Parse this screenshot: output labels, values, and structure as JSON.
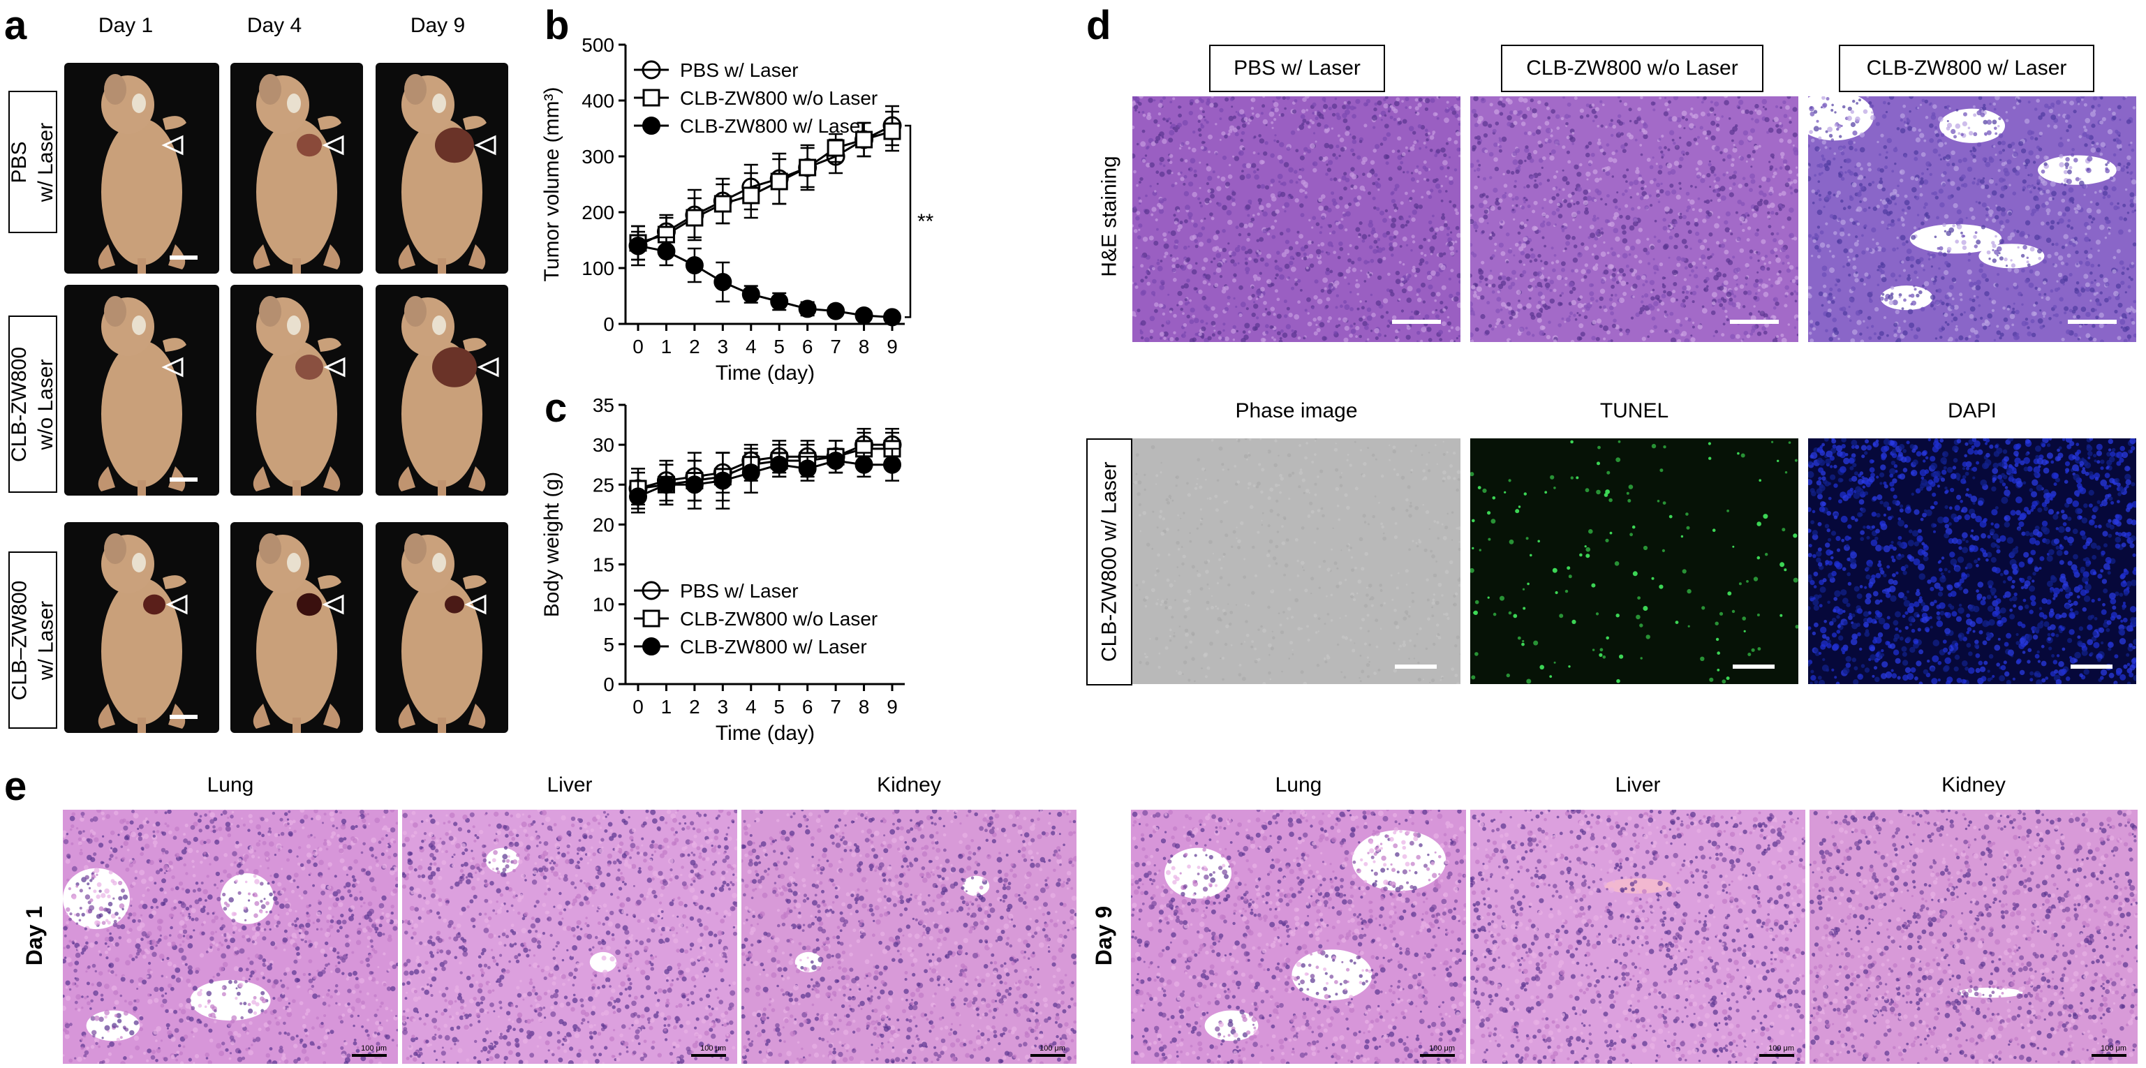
{
  "panels": {
    "a": {
      "letter": "a",
      "columns": [
        "Day 1",
        "Day 4",
        "Day 9"
      ],
      "rows": [
        "PBS\nw/ Laser",
        "CLB-ZW800\nw/o Laser",
        "CLB–ZW800\nw/ Laser"
      ]
    },
    "b": {
      "letter": "b"
    },
    "c": {
      "letter": "c"
    },
    "d": {
      "letter": "d",
      "top_labels": [
        "PBS w/ Laser",
        "CLB-ZW800 w/o Laser",
        "CLB-ZW800 w/ Laser"
      ],
      "top_side_label": "H&E staining",
      "bottom_labels": [
        "Phase image",
        "TUNEL",
        "DAPI"
      ],
      "bottom_side_label": "CLB-ZW800 w/ Laser"
    },
    "e": {
      "letter": "e",
      "organs": [
        "Lung",
        "Liver",
        "Kidney"
      ],
      "days": [
        "Day 1",
        "Day 9"
      ],
      "scale_text": "100 μm"
    }
  },
  "colors": {
    "he_purple": "#9a5fc2",
    "he_dark": "#5a3590",
    "he_pink": "#d796d9",
    "tunel_green": "#3fe05a",
    "dapi_blue": "#1f2fd0",
    "phase_gray": "#b9b9b9"
  },
  "chart_data": [
    {
      "type": "line",
      "title": "",
      "xlabel": "Time (day)",
      "ylabel": "Tumor volume (mm³)",
      "xlim": [
        0,
        9
      ],
      "ylim": [
        0,
        500
      ],
      "x_ticks": [
        0,
        1,
        2,
        3,
        4,
        5,
        6,
        7,
        8,
        9
      ],
      "y_ticks": [
        0,
        100,
        200,
        300,
        400,
        500
      ],
      "x": [
        0,
        1,
        2,
        3,
        4,
        5,
        6,
        7,
        8,
        9
      ],
      "legend_position": "top-left",
      "annotation": "**",
      "series": [
        {
          "name": "PBS w/ Laser",
          "marker": "open-circle",
          "values": [
            140,
            165,
            195,
            220,
            245,
            260,
            280,
            300,
            330,
            355
          ],
          "errors": [
            35,
            30,
            45,
            40,
            40,
            45,
            40,
            30,
            30,
            35
          ]
        },
        {
          "name": "CLB-ZW800 w/o Laser",
          "marker": "open-square",
          "values": [
            145,
            160,
            190,
            215,
            230,
            255,
            280,
            315,
            330,
            345
          ],
          "errors": [
            30,
            30,
            35,
            35,
            40,
            40,
            35,
            25,
            30,
            35
          ]
        },
        {
          "name": "CLB-ZW800 w/ Laser",
          "marker": "filled-circle",
          "values": [
            140,
            130,
            105,
            75,
            53,
            40,
            27,
            23,
            15,
            12
          ],
          "errors": [
            25,
            25,
            30,
            35,
            15,
            15,
            12,
            8,
            5,
            4
          ]
        }
      ]
    },
    {
      "type": "line",
      "title": "",
      "xlabel": "Time (day)",
      "ylabel": "Body weight (g)",
      "xlim": [
        0,
        9
      ],
      "ylim": [
        0,
        35
      ],
      "x_ticks": [
        0,
        1,
        2,
        3,
        4,
        5,
        6,
        7,
        8,
        9
      ],
      "y_ticks": [
        0,
        5,
        10,
        15,
        20,
        25,
        30,
        35
      ],
      "x": [
        0,
        1,
        2,
        3,
        4,
        5,
        6,
        7,
        8,
        9
      ],
      "legend_position": "bottom-left",
      "series": [
        {
          "name": "PBS w/ Laser",
          "marker": "open-circle",
          "values": [
            24.5,
            25.5,
            26,
            26.5,
            28,
            28.5,
            28.5,
            28.5,
            30,
            30
          ],
          "errors": [
            2.5,
            2.5,
            3,
            2.5,
            2,
            2,
            2,
            2,
            2,
            2
          ]
        },
        {
          "name": "CLB-ZW800 w/o Laser",
          "marker": "open-square",
          "values": [
            24.5,
            25,
            25.5,
            26,
            27.5,
            28,
            28,
            28.5,
            29.5,
            29.5
          ],
          "errors": [
            2,
            2.5,
            2.5,
            3,
            2,
            2,
            2,
            2,
            2,
            2
          ]
        },
        {
          "name": "CLB-ZW800 w/ Laser",
          "marker": "filled-circle",
          "values": [
            23.5,
            25,
            25,
            25.5,
            26.5,
            27.5,
            27,
            28,
            27.5,
            27.5
          ],
          "errors": [
            2,
            2.5,
            3,
            3.5,
            2.5,
            1.5,
            1.5,
            1.5,
            1.5,
            2
          ]
        }
      ]
    }
  ]
}
